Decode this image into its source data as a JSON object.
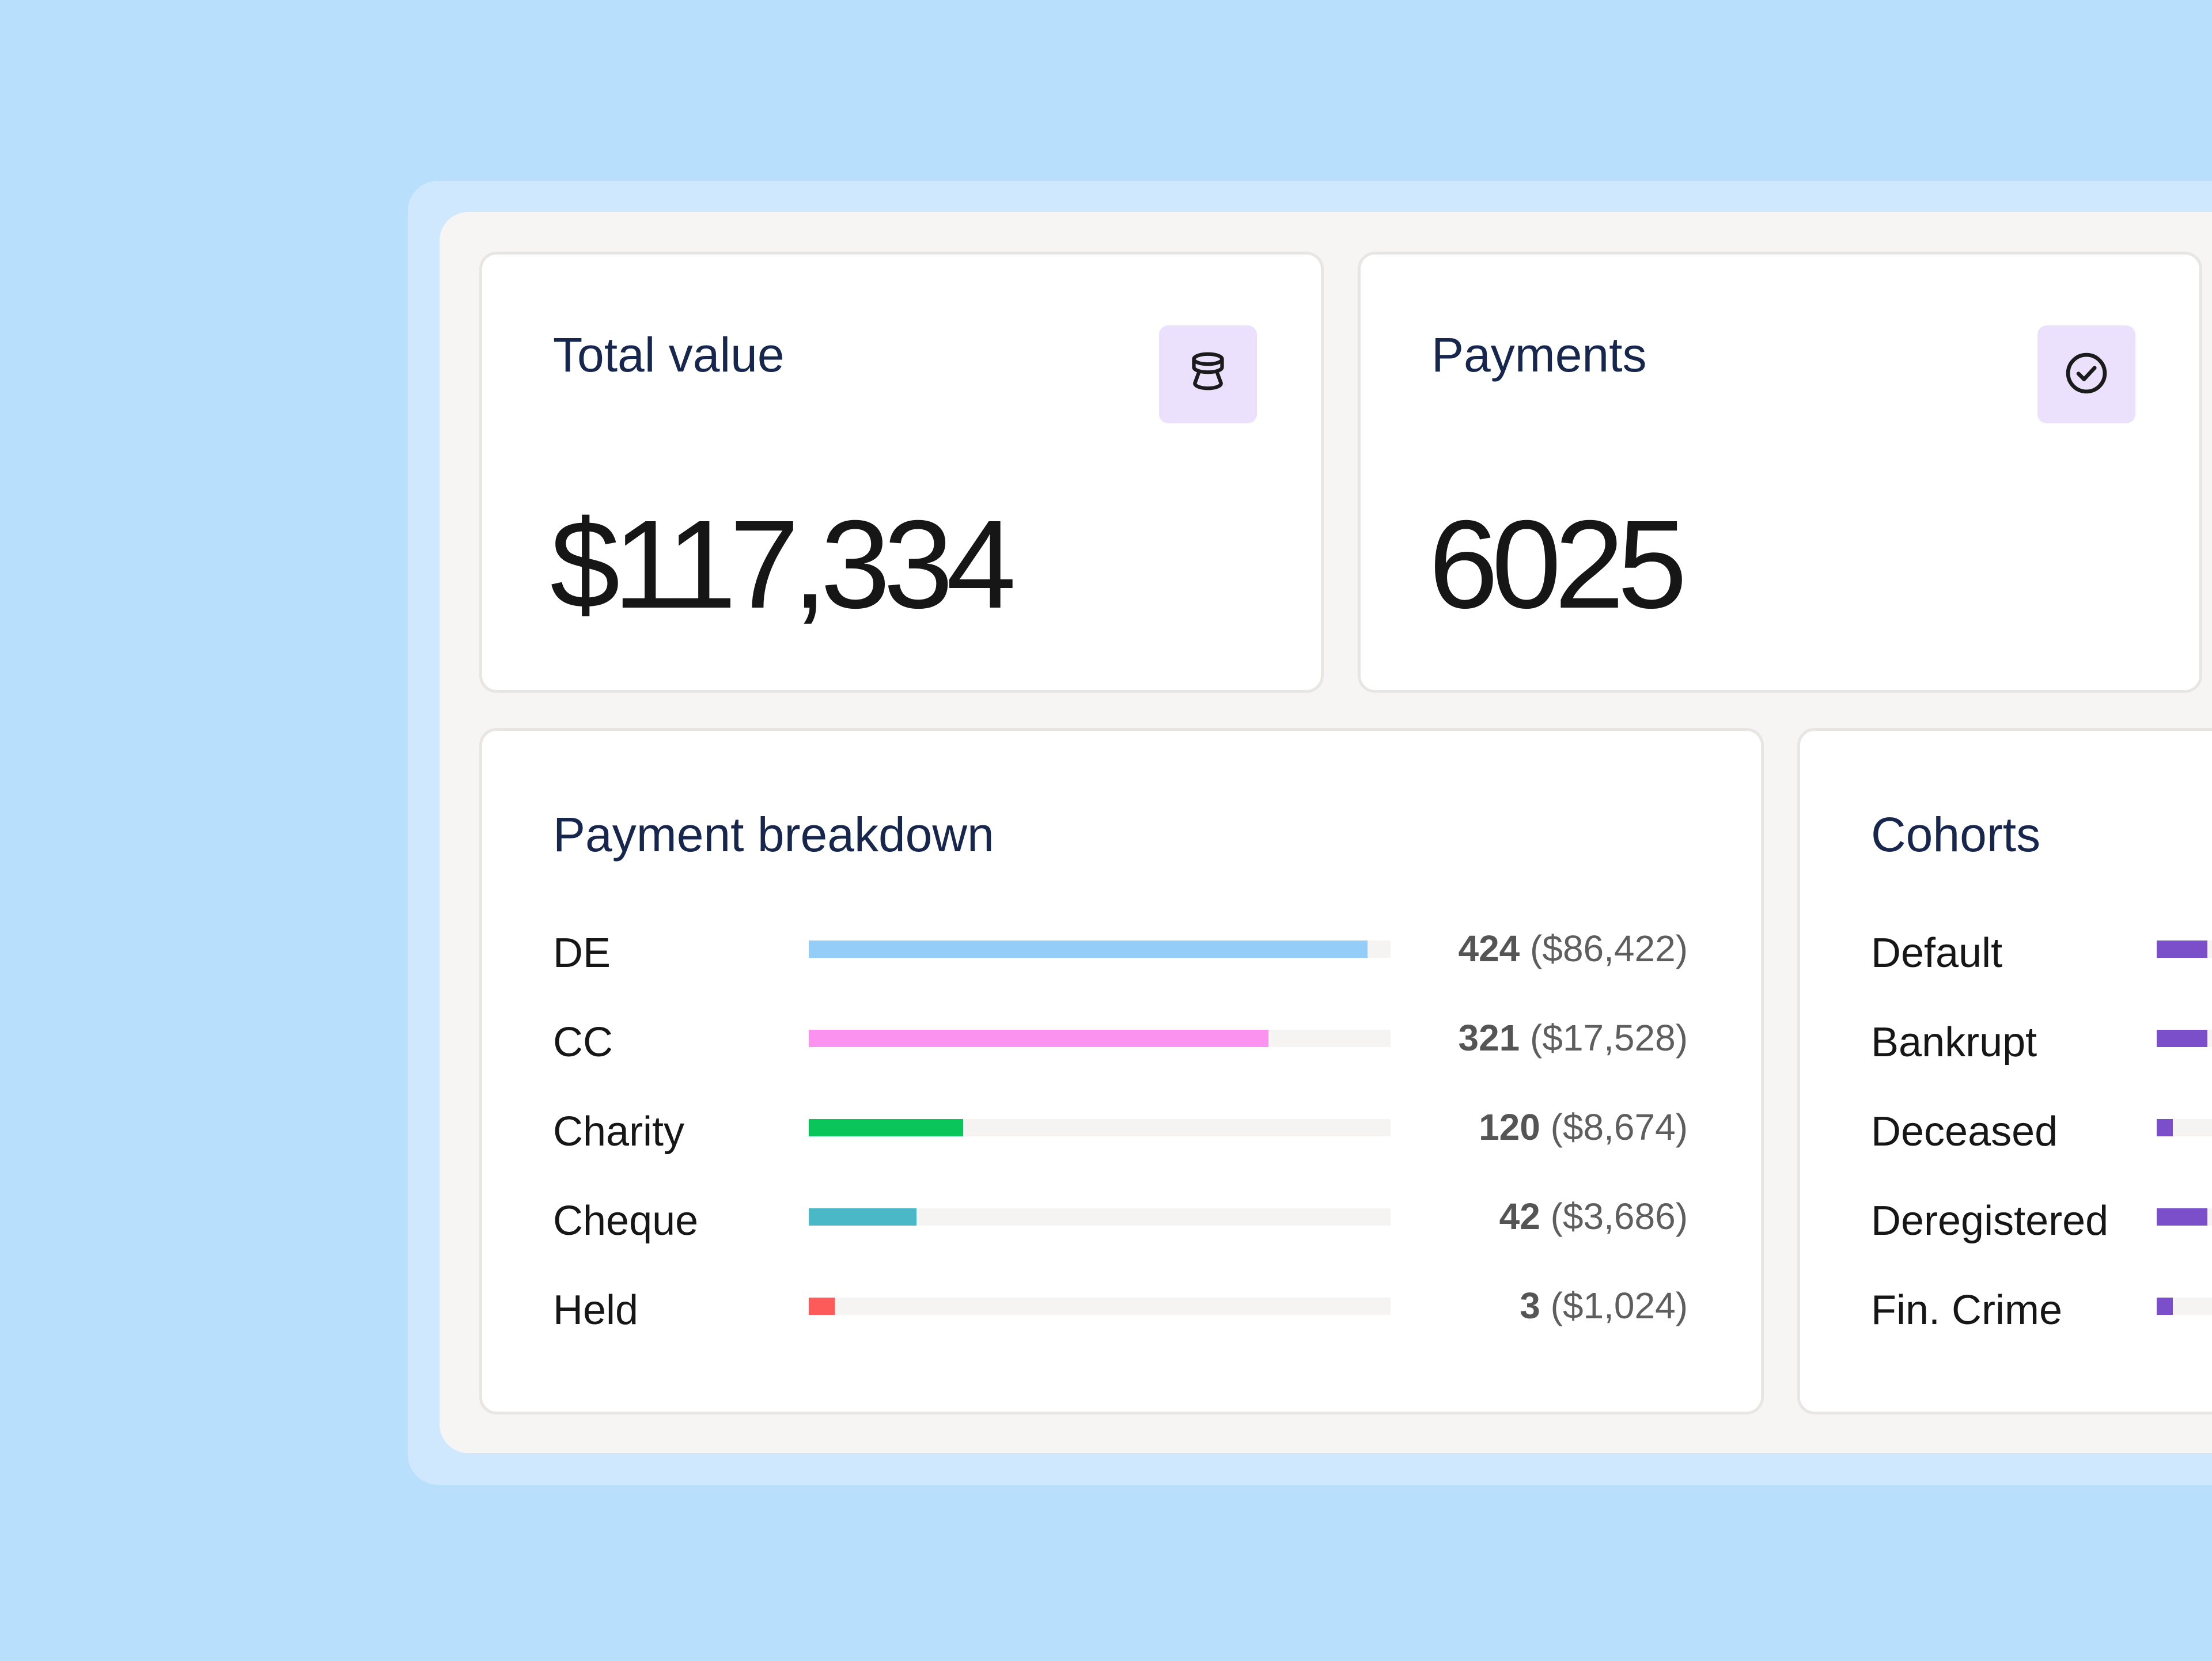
{
  "summary_cards": [
    {
      "title": "Total value",
      "value": "$117,334",
      "icon": "coin-stack-icon"
    },
    {
      "title": "Payments",
      "value": "6025",
      "icon": "check-circle-icon"
    }
  ],
  "payment_breakdown": {
    "title": "Payment breakdown",
    "rows": [
      {
        "label": "DE",
        "count": "424",
        "amount": "($86,422)",
        "fraction": 0.96,
        "color": "#94cdf7"
      },
      {
        "label": "CC",
        "count": "321",
        "amount": "($17,528)",
        "fraction": 0.79,
        "color": "#fb92f0"
      },
      {
        "label": "Charity",
        "count": "120",
        "amount": "($8,674)",
        "fraction": 0.265,
        "color": "#0ac55a"
      },
      {
        "label": "Cheque",
        "count": "42",
        "amount": "($3,686)",
        "fraction": 0.185,
        "color": "#4ab8c6"
      },
      {
        "label": "Held",
        "count": "3",
        "amount": "($1,024)",
        "fraction": 0.045,
        "color": "#fd5a5a"
      }
    ]
  },
  "cohorts": {
    "title": "Cohorts",
    "rows": [
      {
        "label": "Default",
        "fraction": 0.8,
        "color": "#7b4fc9"
      },
      {
        "label": "Bankrupt",
        "fraction": 0.8,
        "color": "#7b4fc9"
      },
      {
        "label": "Deceased",
        "fraction": 0.25,
        "color": "#7b4fc9"
      },
      {
        "label": "Deregistered",
        "fraction": 0.8,
        "color": "#7b4fc9"
      },
      {
        "label": "Fin. Crime",
        "fraction": 0.25,
        "color": "#7b4fc9"
      }
    ]
  }
}
